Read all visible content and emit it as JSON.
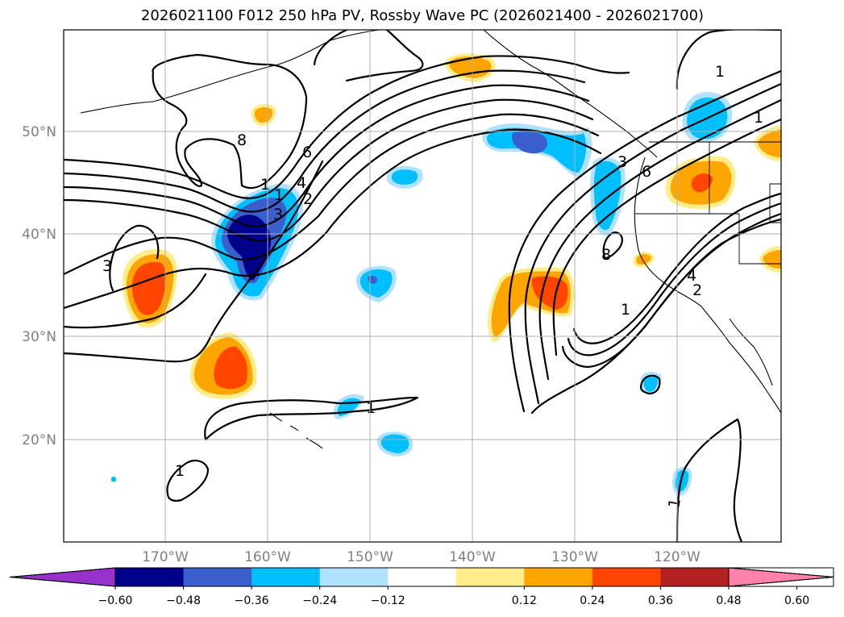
{
  "title": "2026021100 F012 250 hPa PV, Rossby Wave PC (2026021400 - 2026021700)",
  "map": {
    "lat_labels": [
      "50°N",
      "40°N",
      "30°N",
      "20°N"
    ],
    "lon_labels": [
      "170°W",
      "160°W",
      "150°W",
      "140°W",
      "130°W",
      "120°W"
    ]
  },
  "contour_labels": [
    "8",
    "6",
    "4",
    "2",
    "3",
    "1",
    "1",
    "3",
    "1",
    "1",
    "3",
    "6",
    "8",
    "1",
    "1",
    "4",
    "2",
    "1",
    "1"
  ],
  "colorbar": {
    "ticks": [
      "−0.60",
      "−0.48",
      "−0.36",
      "−0.24",
      "−0.12",
      "0.12",
      "0.24",
      "0.36",
      "0.48",
      "0.60"
    ],
    "colors": [
      "#9932cc",
      "#00008b",
      "#3a5fcd",
      "#00bfff",
      "#b0e2ff",
      "#ffffff",
      "#ffec8b",
      "#ffa500",
      "#ff4500",
      "#b22222",
      "#ff82ab"
    ]
  }
}
